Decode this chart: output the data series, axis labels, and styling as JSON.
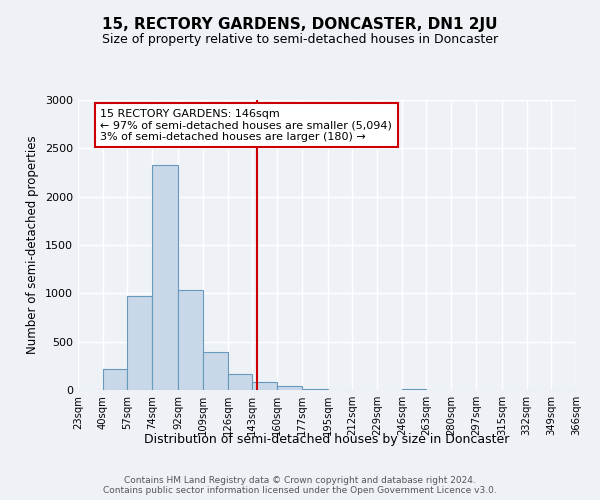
{
  "title": "15, RECTORY GARDENS, DONCASTER, DN1 2JU",
  "subtitle": "Size of property relative to semi-detached houses in Doncaster",
  "xlabel": "Distribution of semi-detached houses by size in Doncaster",
  "ylabel": "Number of semi-detached properties",
  "bar_edges": [
    23,
    40,
    57,
    74,
    92,
    109,
    126,
    143,
    160,
    177,
    195,
    212,
    229,
    246,
    263,
    280,
    297,
    315,
    332,
    349,
    366
  ],
  "bar_heights": [
    5,
    220,
    970,
    2330,
    1030,
    390,
    165,
    80,
    40,
    15,
    5,
    5,
    0,
    15,
    0,
    0,
    0,
    0,
    0,
    0
  ],
  "bar_color": "#c8d8e8",
  "bar_edge_color": "#6699bb",
  "vline_x": 146,
  "vline_color": "#cc0000",
  "annotation_title": "15 RECTORY GARDENS: 146sqm",
  "annotation_line1": "← 97% of semi-detached houses are smaller (5,094)",
  "annotation_line2": "3% of semi-detached houses are larger (180) →",
  "annotation_box_color": "white",
  "annotation_border_color": "#cc0000",
  "ylim": [
    0,
    3000
  ],
  "yticks": [
    0,
    500,
    1000,
    1500,
    2000,
    2500,
    3000
  ],
  "background_color": "#eef2f7",
  "footer_line1": "Contains HM Land Registry data © Crown copyright and database right 2024.",
  "footer_line2": "Contains public sector information licensed under the Open Government Licence v3.0.",
  "tick_labels": [
    "23sqm",
    "40sqm",
    "57sqm",
    "74sqm",
    "92sqm",
    "109sqm",
    "126sqm",
    "143sqm",
    "160sqm",
    "177sqm",
    "195sqm",
    "212sqm",
    "229sqm",
    "246sqm",
    "263sqm",
    "280sqm",
    "297sqm",
    "315sqm",
    "332sqm",
    "349sqm",
    "366sqm"
  ]
}
